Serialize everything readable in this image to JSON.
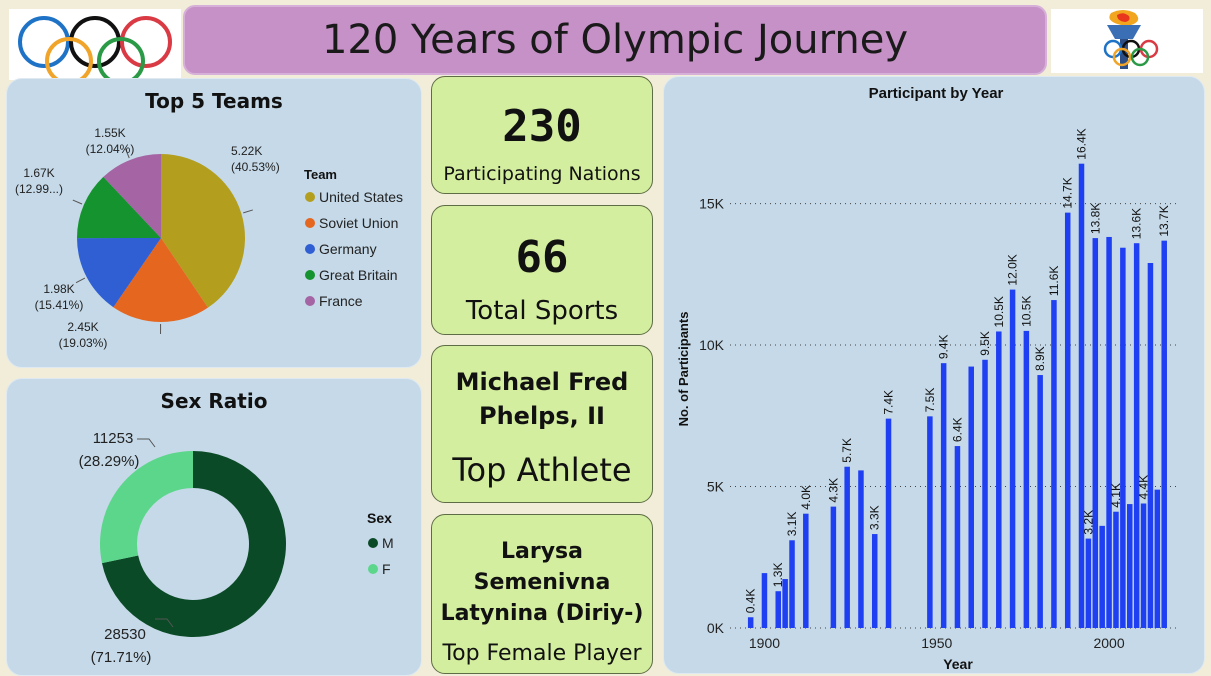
{
  "header": {
    "title": "120 Years of Olympic Journey"
  },
  "cards": {
    "nations_value": "230",
    "nations_label": "Participating Nations",
    "sports_value": "66",
    "sports_label": "Total Sports",
    "athlete_line1": "Michael Fred",
    "athlete_line2": "Phelps, II",
    "athlete_label": "Top Athlete",
    "female_line1": "Larysa",
    "female_line2": "Semenivna",
    "female_line3": "Latynina (Diriy-)",
    "female_label": "Top Female Player"
  },
  "chart_data": [
    {
      "type": "pie",
      "title": "Top 5 Teams",
      "legend_title": "Team",
      "legend_position": "right",
      "slices": [
        {
          "label": "United States",
          "value": 5.22,
          "value_label": "5.22K",
          "pct_label": "(40.53%)",
          "color": "#b39e1e"
        },
        {
          "label": "Soviet Union",
          "value": 2.45,
          "value_label": "2.45K",
          "pct_label": "(19.03%)",
          "color": "#e5661f"
        },
        {
          "label": "Germany",
          "value": 1.98,
          "value_label": "1.98K",
          "pct_label": "(15.41%)",
          "color": "#2f5fd2"
        },
        {
          "label": "Great Britain",
          "value": 1.67,
          "value_label": "1.67K",
          "pct_label": "(12.99...)",
          "color": "#15932e"
        },
        {
          "label": "France",
          "value": 1.55,
          "value_label": "1.55K",
          "pct_label": "(12.04%)",
          "color": "#a565a4"
        }
      ]
    },
    {
      "type": "pie",
      "subtype": "donut",
      "title": "Sex Ratio",
      "legend_title": "Sex",
      "legend_position": "right",
      "slices": [
        {
          "label": "M",
          "value": 28530,
          "value_label": "28530",
          "pct_label": "(71.71%)",
          "color": "#0b4a26"
        },
        {
          "label": "F",
          "value": 11253,
          "value_label": "11253",
          "pct_label": "(28.29%)",
          "color": "#5cd68b"
        }
      ]
    },
    {
      "type": "bar",
      "title": "Participant by Year",
      "xlabel": "Year",
      "ylabel": "No. of Participants",
      "xlim": [
        1890,
        2020
      ],
      "ylim": [
        0,
        17000
      ],
      "xticks": [
        "1900",
        "1950",
        "2000"
      ],
      "yticks": [
        "0K",
        "5K",
        "10K",
        "15K"
      ],
      "ytick_values": [
        0,
        5000,
        10000,
        15000
      ],
      "grid": true,
      "bar_color": "#1f3ff2",
      "series": [
        {
          "x": [
            1896,
            1900,
            1904,
            1906,
            1908,
            1912,
            1920,
            1924,
            1928,
            1932,
            1936,
            1948,
            1952,
            1956,
            1960,
            1964,
            1968,
            1972,
            1976,
            1980,
            1984,
            1988,
            1992,
            1994,
            1996,
            1998,
            2000,
            2002,
            2004,
            2006,
            2008,
            2010,
            2012,
            2014,
            2016
          ],
          "y": [
            380,
            1940,
            1300,
            1730,
            3100,
            4040,
            4290,
            5700,
            5570,
            3320,
            7400,
            7480,
            9360,
            6430,
            9240,
            9480,
            10480,
            11960,
            10500,
            8940,
            11590,
            14680,
            16410,
            3160,
            13780,
            3610,
            13820,
            4110,
            13440,
            4380,
            13600,
            4400,
            12900,
            4890,
            13690
          ],
          "labels": [
            "0.4K",
            "",
            "1.3K",
            "",
            "3.1K",
            "4.0K",
            "4.3K",
            "5.7K",
            "",
            "3.3K",
            "7.4K",
            "7.5K",
            "9.4K",
            "6.4K",
            "",
            "9.5K",
            "10.5K",
            "12.0K",
            "10.5K",
            "8.9K",
            "11.6K",
            "14.7K",
            "16.4K",
            "3.2K",
            "13.8K",
            "",
            "",
            "4.1K",
            "",
            "",
            "13.6K",
            "4.4K",
            "",
            "",
            "13.7K"
          ]
        }
      ]
    }
  ]
}
